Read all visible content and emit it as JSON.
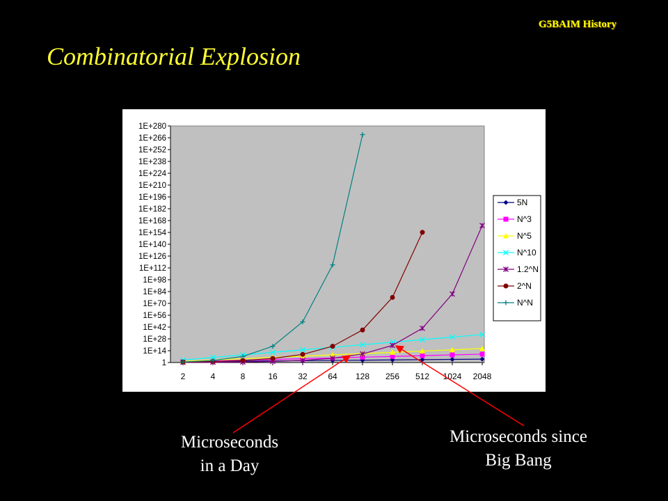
{
  "header": {
    "course_label": "G5BAIM History"
  },
  "slide": {
    "title": "Combinatorial Explosion"
  },
  "annotations": {
    "day": {
      "line1": "Microseconds",
      "line2": "in a Day"
    },
    "bigbang": {
      "line1": "Microseconds since",
      "line2": "Big Bang"
    }
  },
  "colors": {
    "background": "#000000",
    "title": "#ffff33",
    "plot_area": "#c0c0c0",
    "arrow": "#ff0000"
  },
  "chart_data": {
    "type": "line",
    "y_scale": "log10",
    "ylim": [
      0,
      280
    ],
    "y_tick_labels": [
      "1",
      "1E+14",
      "1E+28",
      "1E+42",
      "1E+56",
      "1E+70",
      "1E+84",
      "1E+98",
      "1E+112",
      "1E+126",
      "1E+140",
      "1E+154",
      "1E+168",
      "1E+182",
      "1E+196",
      "1E+210",
      "1E+224",
      "1E+238",
      "1E+252",
      "1E+266",
      "1E+280"
    ],
    "y_tick_exponents": [
      0,
      14,
      28,
      42,
      56,
      70,
      84,
      98,
      112,
      126,
      140,
      154,
      168,
      182,
      196,
      210,
      224,
      238,
      252,
      266,
      280
    ],
    "categories": [
      "2",
      "4",
      "8",
      "16",
      "32",
      "64",
      "128",
      "256",
      "512",
      "1024",
      "2048"
    ],
    "grid": false,
    "legend_position": "right",
    "series": [
      {
        "name": "5N",
        "color": "#000080",
        "marker": "diamond",
        "log10_values": [
          1.0,
          1.3,
          1.6,
          1.9,
          2.2,
          2.51,
          2.81,
          3.11,
          3.41,
          3.71,
          4.01
        ]
      },
      {
        "name": "N^3",
        "color": "#ff00ff",
        "marker": "square",
        "log10_values": [
          0.9,
          1.81,
          2.71,
          3.61,
          4.52,
          5.42,
          6.32,
          7.22,
          8.13,
          9.03,
          9.93
        ]
      },
      {
        "name": "N^5",
        "color": "#ffff00",
        "marker": "triangle",
        "log10_values": [
          1.51,
          3.01,
          4.52,
          6.02,
          7.53,
          9.03,
          10.54,
          12.04,
          13.55,
          15.05,
          16.56
        ]
      },
      {
        "name": "N^10",
        "color": "#00ffff",
        "marker": "x",
        "log10_values": [
          3.01,
          6.02,
          9.03,
          12.04,
          15.05,
          18.06,
          21.07,
          24.08,
          27.09,
          30.1,
          33.11
        ]
      },
      {
        "name": "1.2^N",
        "color": "#800080",
        "marker": "star",
        "log10_values": [
          0.16,
          0.32,
          0.63,
          1.27,
          2.53,
          5.07,
          10.13,
          20.27,
          40.54,
          81.08,
          162.16
        ]
      },
      {
        "name": "2^N",
        "color": "#800000",
        "marker": "circle",
        "log10_values": [
          0.6,
          1.2,
          2.41,
          4.82,
          9.63,
          19.27,
          38.53,
          77.06,
          154.13,
          null,
          null
        ]
      },
      {
        "name": "N^N",
        "color": "#008080",
        "marker": "plus",
        "log10_values": [
          0.6,
          2.41,
          7.22,
          19.27,
          48.16,
          115.6,
          269.7,
          null,
          null,
          null,
          null
        ]
      }
    ]
  }
}
